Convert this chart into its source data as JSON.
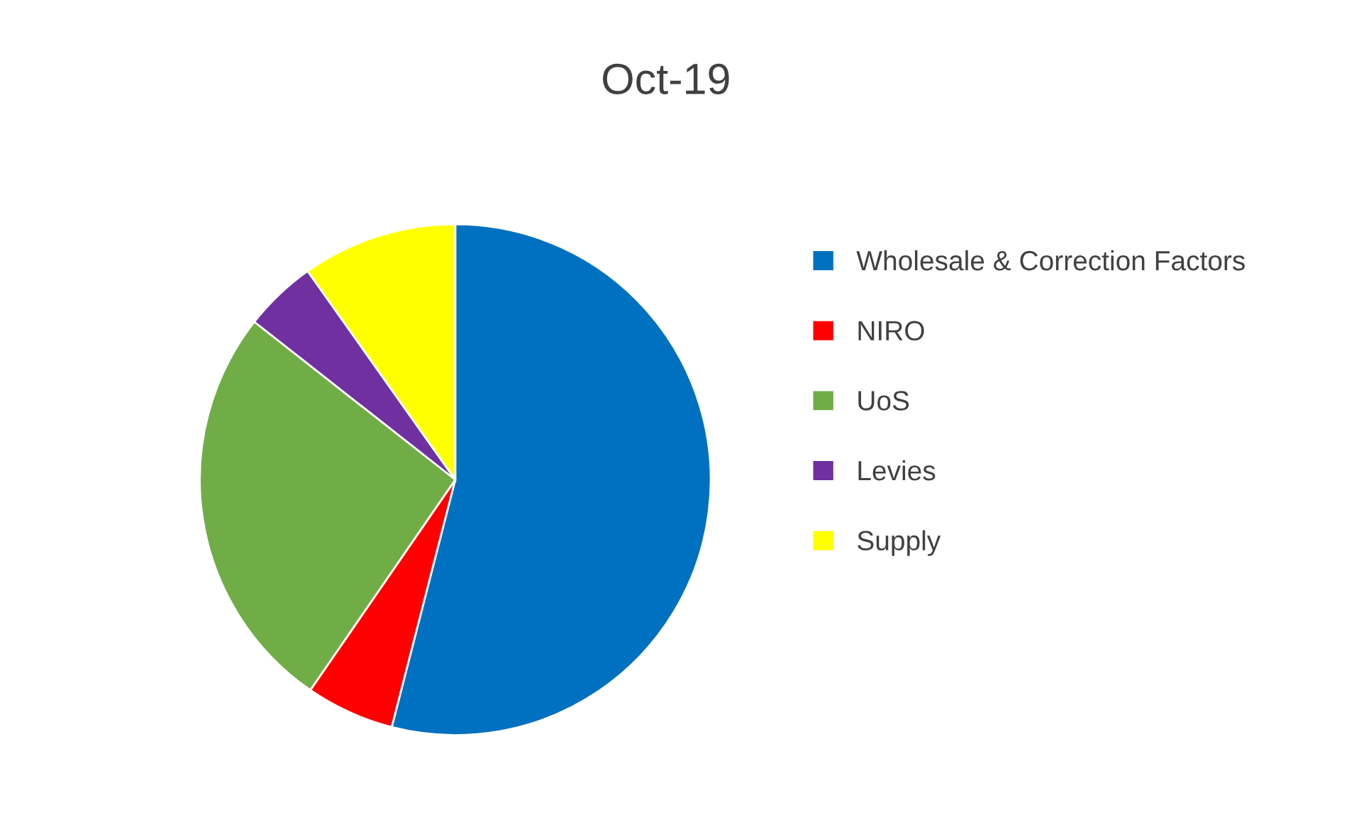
{
  "chart_data": {
    "type": "pie",
    "title": "Oct-19",
    "categories": [
      "Wholesale & Correction Factors",
      "NIRO",
      "UoS",
      "Levies",
      "Supply"
    ],
    "values": [
      54,
      5.6,
      26,
      4.6,
      9.8
    ],
    "colors": [
      "#0070c0",
      "#ff0000",
      "#70ad47",
      "#7030a0",
      "#ffff00"
    ],
    "legend": "right"
  }
}
